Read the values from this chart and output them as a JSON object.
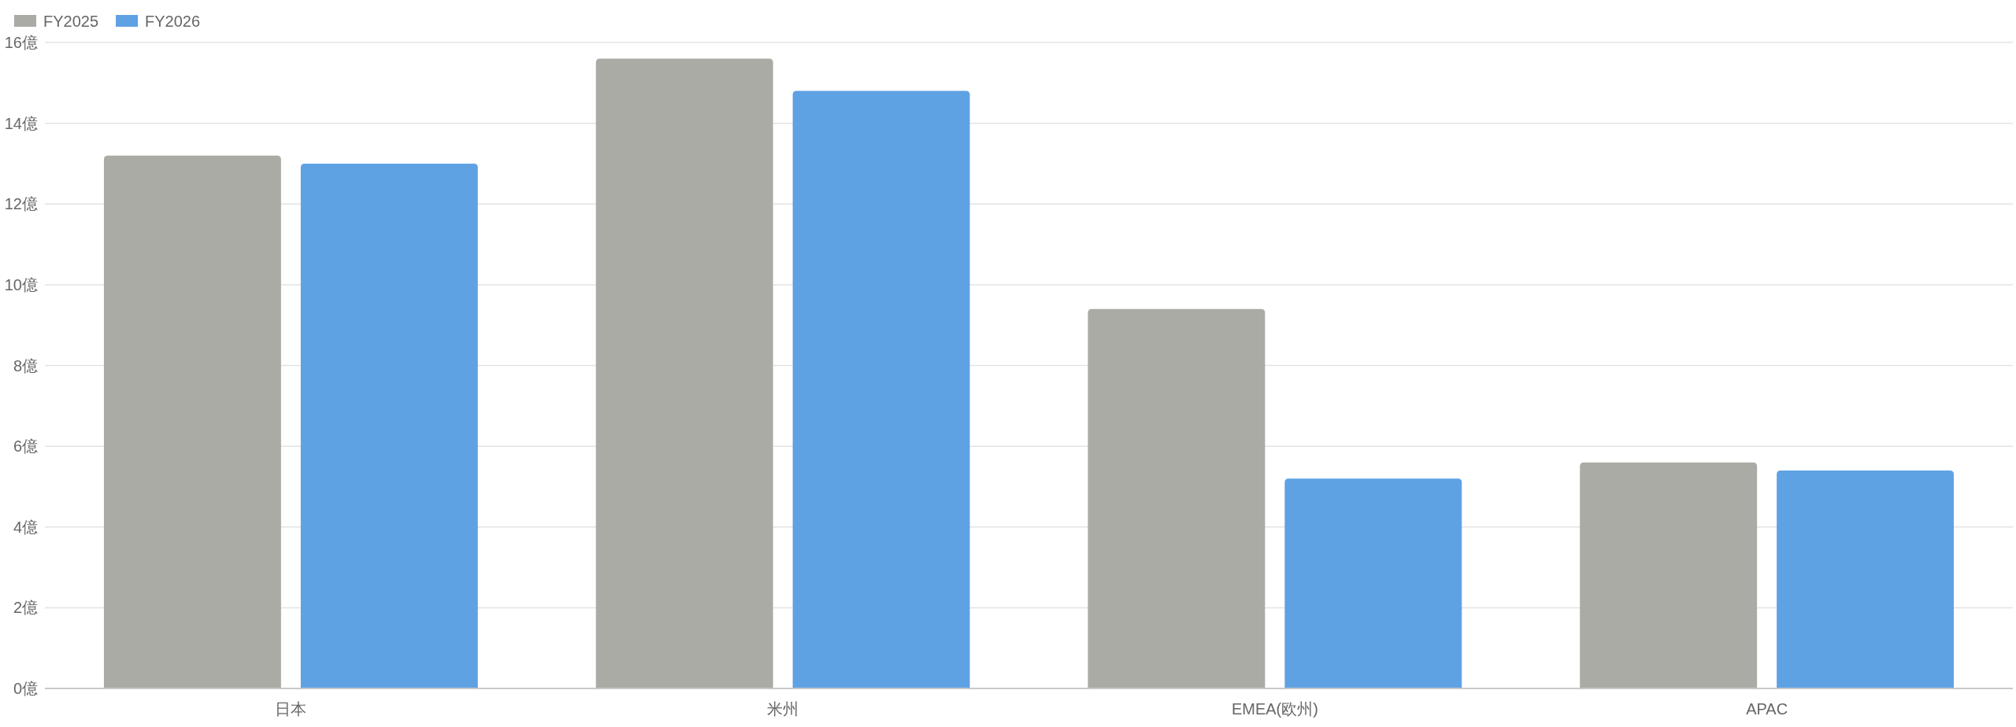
{
  "chart_data": {
    "type": "bar",
    "categories": [
      "日本",
      "米州",
      "EMEA(欧州)",
      "APAC"
    ],
    "series": [
      {
        "name": "FY2025",
        "color": "#aaaba5",
        "values": [
          13.2,
          15.6,
          9.4,
          5.6
        ]
      },
      {
        "name": "FY2026",
        "color": "#5fa2e4",
        "values": [
          13.0,
          14.8,
          5.2,
          5.4
        ]
      }
    ],
    "ylim": [
      0,
      16
    ],
    "yticks": [
      {
        "value": 0,
        "label": "0億"
      },
      {
        "value": 2,
        "label": "2億"
      },
      {
        "value": 4,
        "label": "4億"
      },
      {
        "value": 6,
        "label": "6億"
      },
      {
        "value": 8,
        "label": "8億"
      },
      {
        "value": 10,
        "label": "10億"
      },
      {
        "value": 12,
        "label": "12億"
      },
      {
        "value": 14,
        "label": "14億"
      },
      {
        "value": 16,
        "label": "16億"
      }
    ],
    "grid": "y",
    "legend": "top left"
  }
}
